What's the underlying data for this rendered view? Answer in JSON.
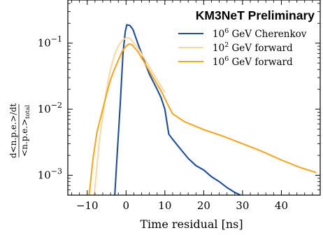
{
  "chart_data": {
    "type": "line",
    "title": "",
    "annotation": "KM3NeT Preliminary",
    "xlabel": "Time residual [ns]",
    "ylabel": {
      "numerator": "d<n.p.e.>/dt",
      "denominator": "<n.p.e.>",
      "denominator_subscript": "total"
    },
    "xlim": [
      -15,
      50
    ],
    "ylim": [
      0.0005,
      0.45
    ],
    "yscale": "log",
    "grid": false,
    "legend_position": "top-right",
    "x_ticks": [
      {
        "value": -10,
        "label": "−10"
      },
      {
        "value": 0,
        "label": "0"
      },
      {
        "value": 10,
        "label": "10"
      },
      {
        "value": 20,
        "label": "20"
      },
      {
        "value": 30,
        "label": "30"
      },
      {
        "value": 40,
        "label": "40"
      }
    ],
    "y_ticks": [
      {
        "value": 0.1,
        "base": "10",
        "exp": "−1"
      },
      {
        "value": 0.01,
        "base": "10",
        "exp": "−2"
      },
      {
        "value": 0.001,
        "base": "10",
        "exp": "−3"
      }
    ],
    "series": [
      {
        "name": "10^6 GeV Cherenkov",
        "legend": {
          "base": "10",
          "exp": "6",
          "text": " GeV Cherenkov"
        },
        "color": "#1f4e96",
        "points": [
          [
            -2.9,
            0.0005
          ],
          [
            -2.3,
            0.002
          ],
          [
            -1.5,
            0.012
          ],
          [
            -0.8,
            0.07
          ],
          [
            -0.2,
            0.15
          ],
          [
            0.2,
            0.19
          ],
          [
            1.0,
            0.185
          ],
          [
            1.8,
            0.16
          ],
          [
            3,
            0.1
          ],
          [
            4,
            0.07
          ],
          [
            5,
            0.048
          ],
          [
            6,
            0.034
          ],
          [
            7,
            0.026
          ],
          [
            8,
            0.02
          ],
          [
            9,
            0.015
          ],
          [
            10,
            0.01
          ],
          [
            11,
            0.0042
          ],
          [
            12,
            0.0035
          ],
          [
            14,
            0.0025
          ],
          [
            16,
            0.0018
          ],
          [
            18,
            0.0014
          ],
          [
            20,
            0.0012
          ],
          [
            22,
            0.00095
          ],
          [
            24,
            0.0008
          ],
          [
            26,
            0.00065
          ],
          [
            28,
            0.00055
          ],
          [
            29.5,
            0.0005
          ]
        ]
      },
      {
        "name": "10^2 GeV forward",
        "legend": {
          "base": "10",
          "exp": "2",
          "text": " GeV forward"
        },
        "color": "#f8d9a6",
        "points": [
          [
            -8.2,
            0.0005
          ],
          [
            -7.7,
            0.001
          ],
          [
            -7,
            0.0028
          ],
          [
            -6,
            0.008
          ],
          [
            -5,
            0.02
          ],
          [
            -4,
            0.04
          ],
          [
            -3,
            0.065
          ],
          [
            -2,
            0.09
          ],
          [
            -1,
            0.11
          ],
          [
            0,
            0.12
          ],
          [
            0.8,
            0.12
          ],
          [
            1.5,
            0.11
          ],
          [
            3,
            0.085
          ],
          [
            5,
            0.055
          ],
          [
            8,
            0.028
          ],
          [
            10,
            0.018
          ]
        ]
      },
      {
        "name": "10^6 GeV forward",
        "legend": {
          "base": "10",
          "exp": "6",
          "text": " GeV forward"
        },
        "color": "#f5a623",
        "points": [
          [
            -9.5,
            0.0005
          ],
          [
            -8.5,
            0.0018
          ],
          [
            -7.5,
            0.0045
          ],
          [
            -6,
            0.01
          ],
          [
            -5,
            0.017
          ],
          [
            -4,
            0.028
          ],
          [
            -3,
            0.04
          ],
          [
            -2,
            0.055
          ],
          [
            -1,
            0.075
          ],
          [
            0,
            0.09
          ],
          [
            0.8,
            0.097
          ],
          [
            1.5,
            0.095
          ],
          [
            3,
            0.075
          ],
          [
            5,
            0.048
          ],
          [
            7,
            0.03
          ],
          [
            9,
            0.019
          ],
          [
            11,
            0.011
          ],
          [
            12,
            0.0085
          ],
          [
            15,
            0.0065
          ],
          [
            20,
            0.0049
          ],
          [
            25,
            0.0039
          ],
          [
            30,
            0.003
          ],
          [
            35,
            0.0023
          ],
          [
            40,
            0.0017
          ],
          [
            45,
            0.0013
          ],
          [
            49,
            0.0011
          ]
        ]
      }
    ]
  }
}
